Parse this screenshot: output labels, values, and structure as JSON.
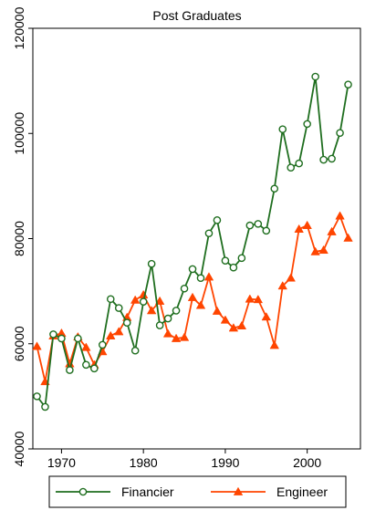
{
  "chart_data": {
    "type": "line",
    "title": "Post Graduates",
    "xlabel": "",
    "ylabel": "",
    "xlim": [
      1966.5,
      2006.5
    ],
    "ylim": [
      40000,
      120000
    ],
    "x_ticks": [
      1970,
      1980,
      1990,
      2000
    ],
    "y_ticks": [
      40000,
      60000,
      80000,
      100000,
      120000
    ],
    "x_tick_labels": [
      "1970",
      "1980",
      "1990",
      "2000"
    ],
    "y_tick_labels": [
      "40000",
      "60000",
      "80000",
      "100000",
      "120000"
    ],
    "grid": false,
    "legend_position": "bottom",
    "x": [
      1967,
      1968,
      1969,
      1970,
      1971,
      1972,
      1973,
      1974,
      1975,
      1976,
      1977,
      1978,
      1979,
      1980,
      1981,
      1982,
      1983,
      1984,
      1985,
      1986,
      1987,
      1988,
      1989,
      1990,
      1991,
      1992,
      1993,
      1994,
      1995,
      1996,
      1997,
      1998,
      1999,
      2000,
      2001,
      2002,
      2003,
      2004,
      2005
    ],
    "series": [
      {
        "name": "Financier",
        "color": "#1f6e1f",
        "marker": "circle",
        "values": [
          50000,
          48000,
          61800,
          61000,
          55000,
          61000,
          56000,
          55300,
          59800,
          68500,
          66800,
          64000,
          58700,
          68000,
          75200,
          63500,
          64800,
          66300,
          70500,
          74200,
          72500,
          81000,
          83500,
          75800,
          74500,
          76300,
          82500,
          82800,
          81500,
          89500,
          100800,
          93500,
          94300,
          101800,
          110800,
          95000,
          95200,
          100100,
          109300
        ]
      },
      {
        "name": "Engineer",
        "color": "#ff4500",
        "marker": "triangle",
        "values": [
          59500,
          52800,
          61500,
          62000,
          56200,
          61300,
          59300,
          56000,
          58500,
          61500,
          62300,
          65000,
          68300,
          69300,
          66300,
          68100,
          61900,
          61000,
          61200,
          68800,
          67300,
          72700,
          66200,
          64500,
          63000,
          63400,
          68500,
          68400,
          65100,
          59700,
          71000,
          72500,
          81800,
          82500,
          77500,
          77800,
          81300,
          84300,
          80100
        ]
      }
    ]
  }
}
